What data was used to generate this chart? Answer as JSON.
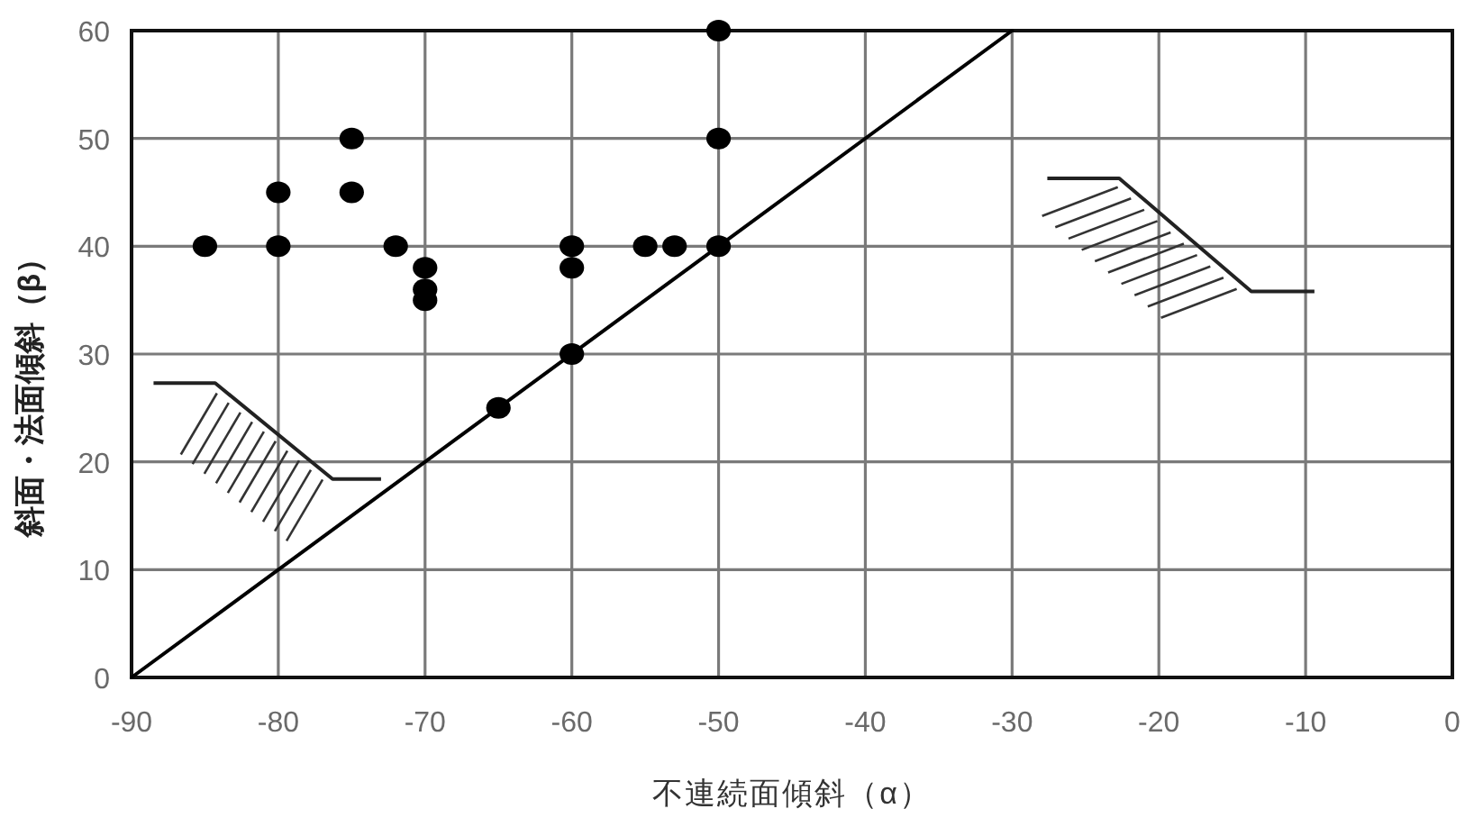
{
  "chart_data": {
    "type": "scatter",
    "xlabel": "不連続面傾斜（α）",
    "ylabel": "斜面・法面傾斜（β）",
    "xlim": [
      -90,
      0
    ],
    "xticks": [
      -90,
      -80,
      -70,
      -60,
      -50,
      -40,
      -30,
      -20,
      -10,
      0
    ],
    "ylim": [
      0,
      60
    ],
    "yticks": [
      0,
      10,
      20,
      30,
      40,
      50,
      60
    ],
    "grid": true,
    "marker": "circle",
    "series": [
      {
        "color": "#000000",
        "x": [
          -85,
          -80,
          -80,
          -75,
          -75,
          -72,
          -70,
          -70,
          -70,
          -65,
          -60,
          -60,
          -60,
          -55,
          -53,
          -50,
          -50,
          -50
        ],
        "values": [
          40,
          45,
          40,
          50,
          45,
          40,
          38,
          36,
          35,
          25,
          40,
          38,
          30,
          40,
          40,
          60,
          50,
          40
        ]
      },
      {
        "type": "line",
        "color": "#000000",
        "marker": "none",
        "line_style": "solid",
        "x": [
          -90,
          -30
        ],
        "values": [
          0,
          60
        ]
      }
    ]
  }
}
